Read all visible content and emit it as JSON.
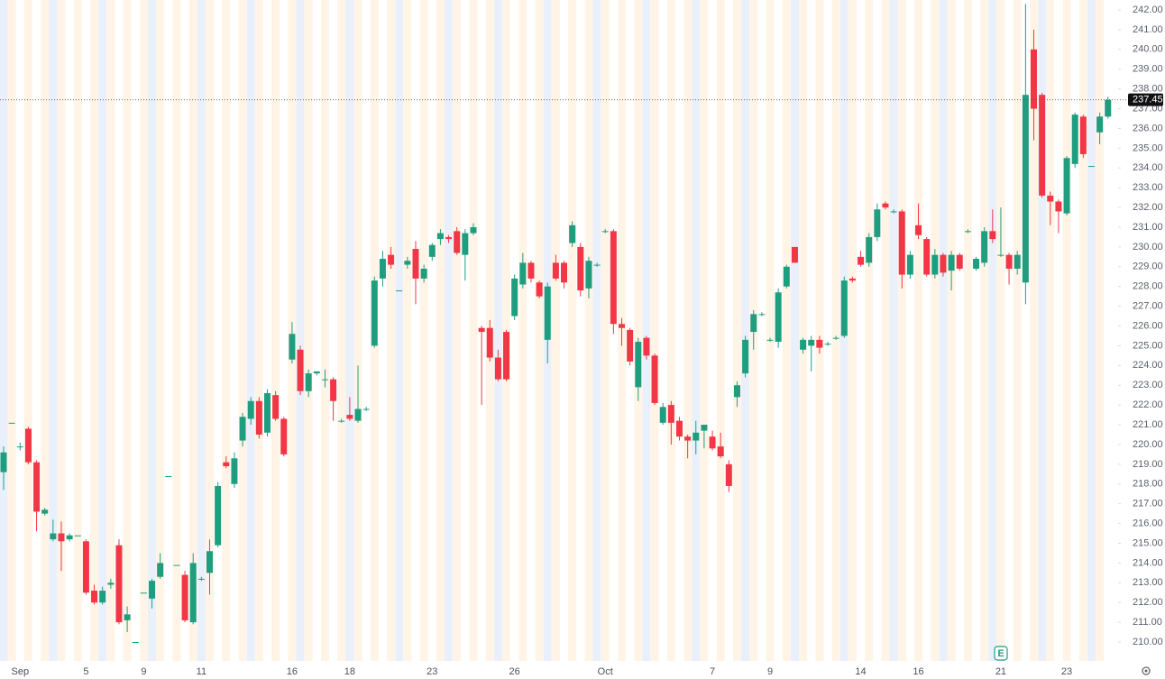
{
  "chart_data": {
    "type": "candlestick",
    "up_color": "#1f9e7f",
    "down_color": "#f23645",
    "ylim": [
      210,
      242
    ],
    "yticks": [
      {
        "value": 210,
        "label": "210.00"
      },
      {
        "value": 211,
        "label": "211.00"
      },
      {
        "value": 212,
        "label": "212.00"
      },
      {
        "value": 213,
        "label": "213.00"
      },
      {
        "value": 214,
        "label": "214.00"
      },
      {
        "value": 215,
        "label": "215.00"
      },
      {
        "value": 216,
        "label": "216.00"
      },
      {
        "value": 217,
        "label": "217.00"
      },
      {
        "value": 218,
        "label": "218.00"
      },
      {
        "value": 219,
        "label": "219.00"
      },
      {
        "value": 220,
        "label": "220.00"
      },
      {
        "value": 221,
        "label": "221.00"
      },
      {
        "value": 222,
        "label": "222.00"
      },
      {
        "value": 223,
        "label": "223.00"
      },
      {
        "value": 224,
        "label": "224.00"
      },
      {
        "value": 225,
        "label": "225.00"
      },
      {
        "value": 226,
        "label": "226.00"
      },
      {
        "value": 227,
        "label": "227.00"
      },
      {
        "value": 228,
        "label": "228.00"
      },
      {
        "value": 229,
        "label": "229.00"
      },
      {
        "value": 230,
        "label": "230.00"
      },
      {
        "value": 231,
        "label": "231.00"
      },
      {
        "value": 232,
        "label": "232.00"
      },
      {
        "value": 233,
        "label": "233.00"
      },
      {
        "value": 234,
        "label": "234.00"
      },
      {
        "value": 235,
        "label": "235.00"
      },
      {
        "value": 236,
        "label": "236.00"
      },
      {
        "value": 237,
        "label": "237.00"
      },
      {
        "value": 238,
        "label": "238.00"
      },
      {
        "value": 239,
        "label": "239.00"
      },
      {
        "value": 240,
        "label": "240.00"
      },
      {
        "value": 241,
        "label": "241.00"
      },
      {
        "value": 242,
        "label": "242.00"
      }
    ],
    "last_price": {
      "value": 237.45,
      "label": "237.45"
    },
    "earnings_marker": "E",
    "x_labels": [
      {
        "index": 2,
        "label": "Sep"
      },
      {
        "index": 10,
        "label": "5"
      },
      {
        "index": 17,
        "label": "9"
      },
      {
        "index": 24,
        "label": "11"
      },
      {
        "index": 35,
        "label": "16"
      },
      {
        "index": 42,
        "label": "18"
      },
      {
        "index": 52,
        "label": "23"
      },
      {
        "index": 62,
        "label": "26"
      },
      {
        "index": 73,
        "label": "Oct"
      },
      {
        "index": 86,
        "label": "7"
      },
      {
        "index": 93,
        "label": "9"
      },
      {
        "index": 104,
        "label": "14"
      },
      {
        "index": 111,
        "label": "16"
      },
      {
        "index": 121,
        "label": "21"
      },
      {
        "index": 129,
        "label": "23"
      }
    ],
    "candles": [
      [
        218.6,
        219.9,
        217.7,
        219.6
      ],
      [
        221.1,
        221.1,
        221.1,
        221.1
      ],
      [
        219.9,
        220.1,
        219.7,
        219.9
      ],
      [
        220.8,
        220.9,
        219.0,
        219.1
      ],
      [
        219.1,
        219.2,
        215.6,
        216.6
      ],
      [
        216.5,
        216.8,
        216.4,
        216.7
      ],
      [
        215.2,
        216.2,
        215.1,
        215.5
      ],
      [
        215.5,
        216.1,
        213.6,
        215.1
      ],
      [
        215.2,
        215.5,
        215.1,
        215.4
      ],
      [
        215.4,
        215.4,
        215.4,
        215.4
      ],
      [
        215.1,
        215.2,
        212.4,
        212.5
      ],
      [
        212.6,
        212.9,
        211.9,
        212.0
      ],
      [
        212.0,
        212.8,
        211.9,
        212.6
      ],
      [
        212.9,
        213.2,
        212.7,
        213.0
      ],
      [
        214.9,
        215.2,
        210.9,
        211.0
      ],
      [
        211.1,
        211.8,
        210.5,
        211.4
      ],
      [
        210.0,
        210.0,
        210.0,
        210.0
      ],
      [
        212.5,
        212.5,
        212.5,
        212.5
      ],
      [
        212.2,
        213.2,
        211.7,
        213.1
      ],
      [
        213.3,
        214.5,
        213.2,
        214.0
      ],
      [
        218.4,
        218.4,
        218.4,
        218.4
      ],
      [
        213.9,
        213.9,
        213.9,
        213.9
      ],
      [
        213.4,
        213.6,
        211.0,
        211.1
      ],
      [
        211.0,
        214.5,
        210.9,
        214.0
      ],
      [
        213.2,
        213.3,
        213.1,
        213.2
      ],
      [
        213.5,
        215.2,
        212.4,
        214.6
      ],
      [
        214.9,
        218.1,
        214.8,
        217.9
      ],
      [
        219.1,
        219.4,
        218.8,
        218.9
      ],
      [
        218.0,
        219.6,
        217.8,
        219.3
      ],
      [
        220.2,
        221.6,
        219.9,
        221.4
      ],
      [
        221.3,
        222.4,
        221.0,
        222.2
      ],
      [
        222.2,
        222.4,
        220.3,
        220.5
      ],
      [
        220.6,
        222.8,
        220.4,
        222.6
      ],
      [
        222.5,
        222.7,
        221.2,
        221.3
      ],
      [
        221.3,
        221.4,
        219.4,
        219.5
      ],
      [
        224.3,
        226.2,
        224.1,
        225.6
      ],
      [
        224.8,
        225.0,
        222.5,
        222.7
      ],
      [
        222.7,
        223.8,
        222.4,
        223.6
      ],
      [
        223.6,
        223.7,
        223.5,
        223.7
      ],
      [
        223.3,
        223.8,
        222.9,
        223.3
      ],
      [
        223.3,
        223.4,
        221.2,
        222.2
      ],
      [
        221.2,
        221.3,
        221.1,
        221.2
      ],
      [
        221.5,
        222.4,
        221.2,
        221.3
      ],
      [
        221.2,
        224.0,
        221.1,
        221.8
      ],
      [
        221.8,
        221.9,
        221.7,
        221.8
      ],
      [
        225.0,
        228.5,
        224.9,
        228.3
      ],
      [
        228.4,
        229.8,
        228.0,
        229.4
      ],
      [
        229.6,
        230.0,
        228.9,
        229.1
      ],
      [
        227.8,
        227.8,
        227.8,
        227.8
      ],
      [
        229.1,
        229.5,
        228.9,
        229.3
      ],
      [
        229.9,
        230.3,
        227.1,
        228.4
      ],
      [
        228.4,
        229.1,
        228.2,
        228.9
      ],
      [
        229.5,
        230.2,
        229.3,
        230.1
      ],
      [
        230.4,
        230.9,
        230.1,
        230.7
      ],
      [
        230.5,
        230.6,
        230.2,
        230.4
      ],
      [
        230.8,
        231.0,
        229.6,
        229.7
      ],
      [
        229.6,
        230.9,
        228.3,
        230.7
      ],
      [
        230.7,
        231.2,
        230.6,
        231.0
      ],
      [
        225.9,
        226.0,
        222.0,
        225.7
      ],
      [
        225.9,
        226.3,
        224.2,
        224.4
      ],
      [
        224.4,
        224.8,
        223.2,
        223.3
      ],
      [
        225.7,
        225.8,
        223.2,
        223.3
      ],
      [
        226.5,
        228.6,
        226.3,
        228.4
      ],
      [
        228.1,
        229.7,
        227.9,
        229.2
      ],
      [
        229.2,
        229.3,
        228.2,
        228.4
      ],
      [
        228.2,
        228.3,
        227.4,
        227.5
      ],
      [
        225.3,
        228.2,
        224.1,
        228.0
      ],
      [
        229.2,
        229.6,
        228.3,
        228.4
      ],
      [
        229.2,
        229.3,
        227.9,
        228.2
      ],
      [
        230.2,
        231.3,
        230.0,
        231.1
      ],
      [
        230.0,
        230.2,
        227.5,
        227.8
      ],
      [
        227.9,
        229.5,
        227.4,
        229.3
      ],
      [
        229.1,
        229.2,
        229.0,
        229.1
      ],
      [
        230.8,
        230.9,
        230.7,
        230.8
      ],
      [
        230.8,
        230.9,
        225.6,
        226.1
      ],
      [
        226.1,
        226.4,
        225.0,
        225.9
      ],
      [
        225.8,
        225.9,
        224.0,
        224.2
      ],
      [
        222.9,
        225.4,
        222.2,
        225.2
      ],
      [
        225.4,
        225.5,
        224.3,
        224.5
      ],
      [
        224.5,
        224.6,
        222.0,
        222.1
      ],
      [
        221.1,
        222.1,
        221.0,
        221.9
      ],
      [
        222.0,
        222.2,
        220.0,
        221.1
      ],
      [
        221.2,
        221.4,
        220.2,
        220.4
      ],
      [
        220.4,
        220.5,
        219.3,
        220.2
      ],
      [
        220.2,
        221.2,
        219.5,
        220.6
      ],
      [
        220.7,
        221.0,
        219.8,
        221.0
      ],
      [
        220.4,
        220.7,
        219.7,
        219.8
      ],
      [
        219.9,
        220.6,
        219.3,
        219.4
      ],
      [
        219.0,
        219.2,
        217.6,
        217.9
      ],
      [
        222.4,
        223.2,
        221.9,
        223.0
      ],
      [
        223.6,
        225.5,
        223.4,
        225.3
      ],
      [
        225.7,
        226.8,
        224.8,
        226.6
      ],
      [
        226.6,
        226.7,
        226.5,
        226.6
      ],
      [
        225.3,
        225.4,
        225.2,
        225.3
      ],
      [
        225.2,
        227.9,
        224.9,
        227.7
      ],
      [
        228.0,
        229.1,
        227.9,
        229.0
      ],
      [
        230.0,
        230.0,
        229.2,
        229.2
      ],
      [
        224.8,
        225.4,
        224.6,
        225.3
      ],
      [
        225.0,
        225.5,
        223.7,
        225.3
      ],
      [
        225.3,
        225.5,
        224.6,
        224.9
      ],
      [
        225.1,
        225.2,
        225.0,
        225.1
      ],
      [
        225.4,
        225.5,
        225.3,
        225.4
      ],
      [
        225.5,
        228.5,
        225.4,
        228.3
      ],
      [
        228.4,
        228.5,
        228.2,
        228.3
      ],
      [
        229.5,
        229.8,
        229.0,
        229.1
      ],
      [
        229.2,
        230.7,
        229.0,
        230.5
      ],
      [
        230.5,
        232.2,
        230.3,
        231.9
      ],
      [
        232.2,
        232.3,
        231.9,
        232.0
      ],
      [
        231.8,
        231.9,
        231.7,
        231.8
      ],
      [
        231.8,
        231.9,
        227.9,
        228.6
      ],
      [
        228.6,
        229.8,
        228.4,
        229.6
      ],
      [
        231.1,
        232.2,
        230.4,
        230.6
      ],
      [
        230.4,
        230.5,
        228.5,
        228.6
      ],
      [
        228.6,
        229.9,
        228.4,
        229.6
      ],
      [
        229.6,
        229.7,
        228.5,
        228.7
      ],
      [
        228.8,
        229.8,
        227.8,
        229.6
      ],
      [
        229.6,
        229.7,
        228.8,
        228.9
      ],
      [
        230.8,
        230.9,
        230.7,
        230.8
      ],
      [
        228.9,
        229.5,
        228.8,
        229.4
      ],
      [
        229.2,
        231.0,
        229.0,
        230.8
      ],
      [
        230.8,
        231.9,
        230.2,
        230.4
      ],
      [
        229.6,
        232.0,
        229.5,
        229.6
      ],
      [
        229.6,
        229.7,
        228.1,
        228.9
      ],
      [
        228.9,
        229.8,
        228.6,
        229.6
      ],
      [
        228.2,
        242.3,
        227.1,
        237.7
      ],
      [
        240.0,
        241.0,
        235.4,
        237.0
      ],
      [
        237.7,
        237.8,
        232.5,
        232.6
      ],
      [
        232.6,
        232.8,
        231.1,
        232.3
      ],
      [
        232.3,
        232.4,
        230.7,
        231.8
      ],
      [
        231.7,
        234.6,
        231.6,
        234.5
      ],
      [
        234.2,
        236.8,
        234.0,
        236.7
      ],
      [
        236.6,
        236.7,
        234.5,
        234.7
      ],
      [
        234.1,
        234.1,
        234.1,
        234.1
      ],
      [
        235.8,
        236.8,
        235.2,
        236.6
      ],
      [
        236.6,
        237.6,
        236.5,
        237.45
      ]
    ]
  }
}
